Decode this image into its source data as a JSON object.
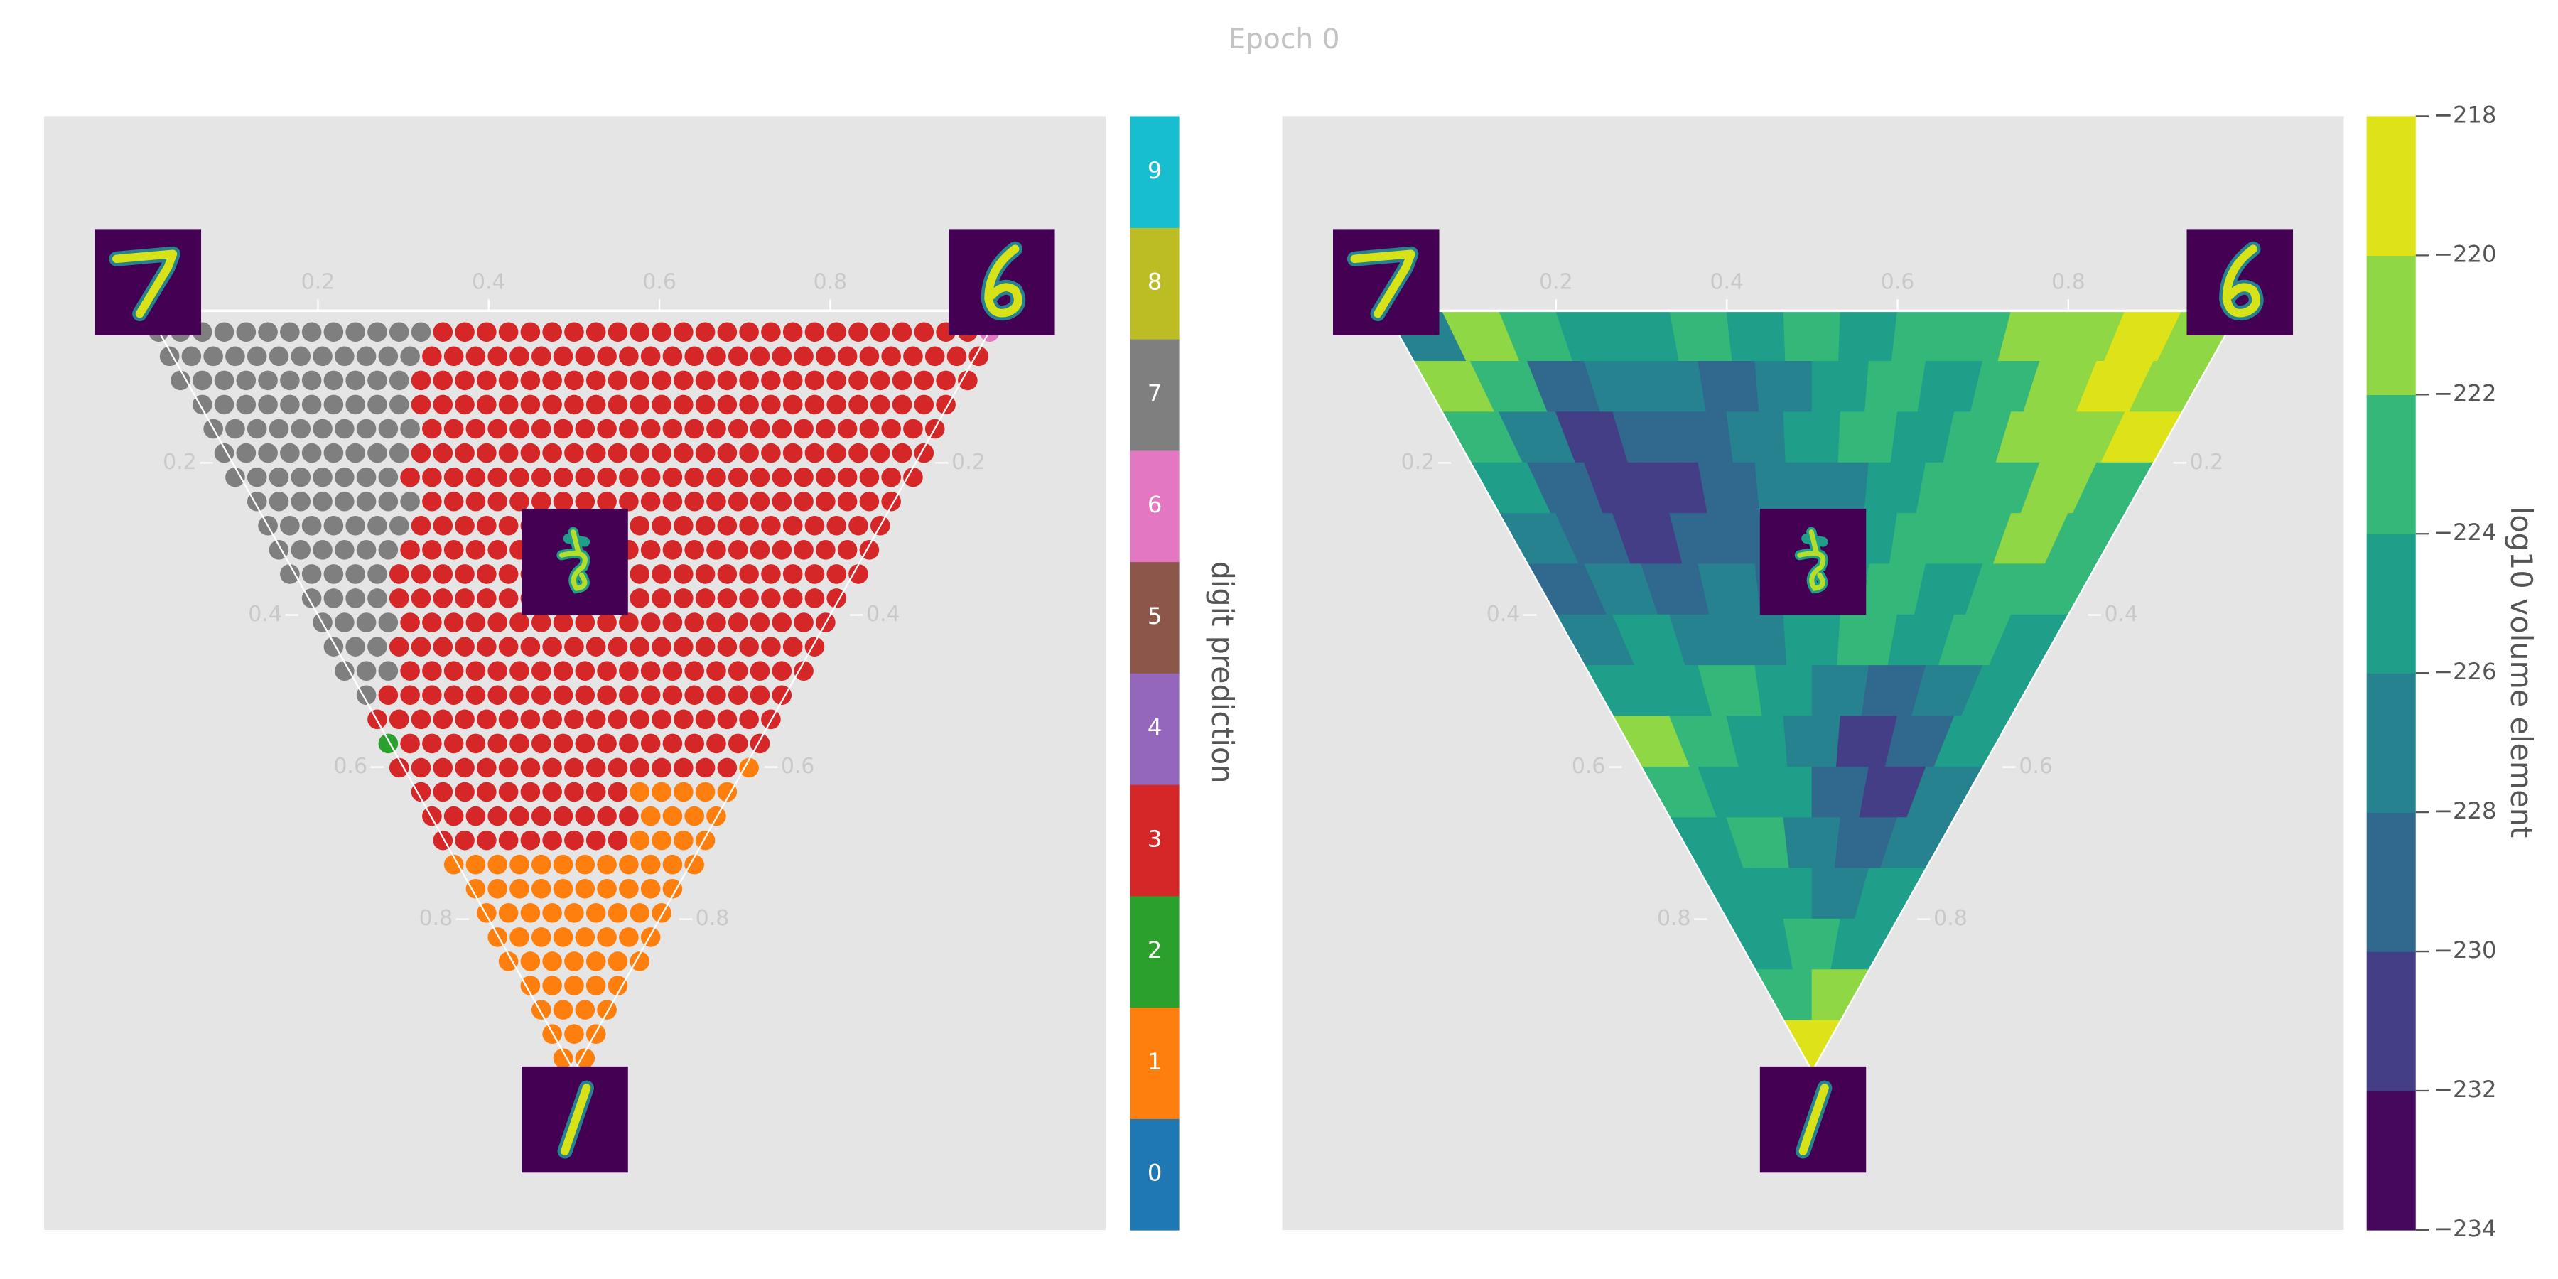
{
  "title": "Epoch 0",
  "chart_data": [
    {
      "type": "ternary-scatter",
      "top_ticks": [
        0.2,
        0.4,
        0.6,
        0.8
      ],
      "left_ticks": [
        0.2,
        0.4,
        0.6,
        0.8
      ],
      "right_ticks": [
        0.2,
        0.4,
        0.6,
        0.8
      ],
      "rows": [
        [
          7,
          7,
          7,
          7,
          7,
          7,
          7,
          7,
          7,
          7,
          7,
          7,
          7,
          3,
          3,
          3,
          3,
          3,
          3,
          3,
          3,
          3,
          3,
          3,
          3,
          3,
          3,
          3,
          3,
          3,
          3,
          3,
          3,
          3,
          3,
          3,
          3,
          3,
          6
        ],
        [
          7,
          7,
          7,
          7,
          7,
          7,
          7,
          7,
          7,
          7,
          7,
          7,
          3,
          3,
          3,
          3,
          3,
          3,
          3,
          3,
          3,
          3,
          3,
          3,
          3,
          3,
          3,
          3,
          3,
          3,
          3,
          3,
          3,
          3,
          3,
          3,
          3,
          3
        ],
        [
          7,
          7,
          7,
          7,
          7,
          7,
          7,
          7,
          7,
          7,
          7,
          3,
          3,
          3,
          3,
          3,
          3,
          3,
          3,
          3,
          3,
          3,
          3,
          3,
          3,
          3,
          3,
          3,
          3,
          3,
          3,
          3,
          3,
          3,
          3,
          3,
          3
        ],
        [
          7,
          7,
          7,
          7,
          7,
          7,
          7,
          7,
          7,
          7,
          3,
          3,
          3,
          3,
          3,
          3,
          3,
          3,
          3,
          3,
          3,
          3,
          3,
          3,
          3,
          3,
          3,
          3,
          3,
          3,
          3,
          3,
          3,
          3,
          3
        ],
        [
          7,
          7,
          7,
          7,
          7,
          7,
          7,
          7,
          7,
          7,
          3,
          3,
          3,
          3,
          3,
          3,
          3,
          3,
          3,
          3,
          3,
          3,
          3,
          3,
          3,
          3,
          3,
          3,
          3,
          3,
          3,
          3,
          3,
          3
        ],
        [
          7,
          7,
          7,
          7,
          7,
          7,
          7,
          7,
          7,
          3,
          3,
          3,
          3,
          3,
          3,
          3,
          3,
          3,
          3,
          3,
          3,
          3,
          3,
          3,
          3,
          3,
          3,
          3,
          3,
          3,
          3,
          3,
          3
        ],
        [
          7,
          7,
          7,
          7,
          7,
          7,
          7,
          7,
          3,
          3,
          3,
          3,
          3,
          3,
          3,
          3,
          3,
          3,
          3,
          3,
          3,
          3,
          3,
          3,
          3,
          3,
          3,
          3,
          3,
          3,
          3,
          3
        ],
        [
          7,
          7,
          7,
          7,
          7,
          7,
          7,
          7,
          3,
          3,
          3,
          3,
          3,
          3,
          3,
          3,
          3,
          3,
          3,
          3,
          3,
          3,
          3,
          3,
          3,
          3,
          3,
          3,
          3,
          3
        ],
        [
          7,
          7,
          7,
          7,
          7,
          7,
          7,
          3,
          3,
          3,
          3,
          3,
          3,
          3,
          3,
          3,
          3,
          3,
          3,
          3,
          3,
          3,
          3,
          3,
          3,
          3,
          3,
          3,
          3
        ],
        [
          7,
          7,
          7,
          7,
          7,
          7,
          3,
          3,
          3,
          3,
          3,
          3,
          3,
          3,
          3,
          3,
          3,
          3,
          3,
          3,
          3,
          3,
          3,
          3,
          3,
          3,
          3,
          3
        ],
        [
          7,
          7,
          7,
          7,
          7,
          3,
          3,
          3,
          3,
          3,
          3,
          3,
          3,
          3,
          3,
          3,
          3,
          3,
          3,
          3,
          3,
          3,
          3,
          3,
          3,
          3,
          3
        ],
        [
          7,
          7,
          7,
          7,
          3,
          3,
          3,
          3,
          3,
          3,
          3,
          3,
          3,
          3,
          3,
          3,
          3,
          3,
          3,
          3,
          3,
          3,
          3,
          3,
          3
        ],
        [
          7,
          7,
          7,
          7,
          3,
          3,
          3,
          3,
          3,
          3,
          3,
          3,
          3,
          3,
          3,
          3,
          3,
          3,
          3,
          3,
          3,
          3,
          3,
          3
        ],
        [
          7,
          7,
          7,
          3,
          3,
          3,
          3,
          3,
          3,
          3,
          3,
          3,
          3,
          3,
          3,
          3,
          3,
          3,
          3,
          3,
          3,
          3,
          3
        ],
        [
          7,
          7,
          7,
          3,
          3,
          3,
          3,
          3,
          3,
          3,
          3,
          3,
          3,
          3,
          3,
          3,
          3,
          3,
          3,
          3,
          3,
          3
        ],
        [
          7,
          3,
          3,
          3,
          3,
          3,
          3,
          3,
          3,
          3,
          3,
          3,
          3,
          3,
          3,
          3,
          3,
          3,
          3,
          3
        ],
        [
          3,
          3,
          3,
          3,
          3,
          3,
          3,
          3,
          3,
          3,
          3,
          3,
          3,
          3,
          3,
          3,
          3,
          3,
          3
        ],
        [
          2,
          3,
          3,
          3,
          3,
          3,
          3,
          3,
          3,
          3,
          3,
          3,
          3,
          3,
          3,
          3,
          3,
          3
        ],
        [
          3,
          3,
          3,
          3,
          3,
          3,
          3,
          3,
          3,
          3,
          3,
          3,
          3,
          3,
          3,
          3,
          1
        ],
        [
          3,
          3,
          3,
          3,
          3,
          3,
          3,
          3,
          3,
          3,
          1,
          1,
          1,
          1,
          1
        ],
        [
          3,
          3,
          3,
          3,
          3,
          3,
          3,
          3,
          3,
          3,
          1,
          1,
          1,
          1
        ],
        [
          3,
          3,
          3,
          3,
          3,
          3,
          3,
          3,
          3,
          1,
          1,
          1,
          1
        ],
        [
          1,
          1,
          1,
          1,
          1,
          1,
          1,
          1,
          1,
          1,
          1,
          1
        ],
        [
          1,
          1,
          1,
          1,
          1,
          1,
          1,
          1,
          1,
          1
        ],
        [
          1,
          1,
          1,
          1,
          1,
          1,
          1,
          1,
          1
        ],
        [
          1,
          1,
          1,
          1,
          1,
          1,
          1,
          1
        ],
        [
          1,
          1,
          1,
          1,
          1,
          1,
          1
        ],
        [
          1,
          1,
          1,
          1,
          1
        ],
        [
          1,
          1,
          1,
          1
        ],
        [
          1,
          1,
          1
        ],
        [
          1,
          1
        ]
      ],
      "colorbar": {
        "label": "digit prediction",
        "categories": [
          0,
          1,
          2,
          3,
          4,
          5,
          6,
          7,
          8,
          9
        ],
        "colors": [
          "#1f77b4",
          "#ff7f0e",
          "#2ca02c",
          "#d62728",
          "#9467bd",
          "#8c564b",
          "#e377c2",
          "#7f7f7f",
          "#bcbd22",
          "#17becf"
        ]
      }
    },
    {
      "type": "ternary-contour",
      "top_ticks": [
        0.2,
        0.4,
        0.6,
        0.8
      ],
      "left_ticks": [
        0.2,
        0.4,
        0.6,
        0.8
      ],
      "right_ticks": [
        0.2,
        0.4,
        0.6,
        0.8
      ],
      "cells": [
        [
          -227,
          -221,
          -223,
          -225,
          -225,
          -223,
          -225,
          -223,
          -225,
          -223,
          -223,
          -221,
          -221,
          -219,
          -221
        ],
        [
          -221,
          -223,
          -229,
          -227,
          -227,
          -229,
          -227,
          -225,
          -223,
          -225,
          -223,
          -221,
          -219,
          -221
        ],
        [
          -223,
          -227,
          -231,
          -229,
          -229,
          -227,
          -225,
          -223,
          -225,
          -223,
          -221,
          -221,
          -219
        ],
        [
          -225,
          -229,
          -231,
          -231,
          -229,
          -227,
          -227,
          -225,
          -223,
          -223,
          -221,
          -223
        ],
        [
          -227,
          -229,
          -231,
          -229,
          -229,
          -227,
          -225,
          -223,
          -223,
          -221,
          -223
        ],
        [
          -229,
          -227,
          -229,
          -227,
          -229,
          -225,
          -223,
          -225,
          -223,
          -223
        ],
        [
          -227,
          -225,
          -227,
          -227,
          -225,
          -223,
          -225,
          -223,
          -225
        ],
        [
          -225,
          -225,
          -223,
          -225,
          -227,
          -229,
          -227,
          -225
        ],
        [
          -221,
          -223,
          -225,
          -227,
          -231,
          -229,
          -225
        ],
        [
          -223,
          -225,
          -225,
          -229,
          -231,
          -227
        ],
        [
          -225,
          -223,
          -227,
          -229,
          -227
        ],
        [
          -225,
          -225,
          -227,
          -225
        ],
        [
          -225,
          -223,
          -225
        ],
        [
          -223,
          -221
        ],
        [
          -219
        ]
      ],
      "clim": [
        -234,
        -218
      ],
      "colorbar": {
        "label": "log10 volume element",
        "ticks": [
          {
            "value": -234,
            "label": "−234"
          },
          {
            "value": -232,
            "label": "−232"
          },
          {
            "value": -230,
            "label": "−230"
          },
          {
            "value": -228,
            "label": "−228"
          },
          {
            "value": -226,
            "label": "−226"
          },
          {
            "value": -224,
            "label": "−224"
          },
          {
            "value": -222,
            "label": "−222"
          },
          {
            "value": -220,
            "label": "−220"
          },
          {
            "value": -218,
            "label": "−218"
          }
        ],
        "colors": [
          "#46085c",
          "#433e85",
          "#31688e",
          "#26828e",
          "#1f9e89",
          "#35b779",
          "#8fd744",
          "#dde318"
        ]
      }
    }
  ]
}
